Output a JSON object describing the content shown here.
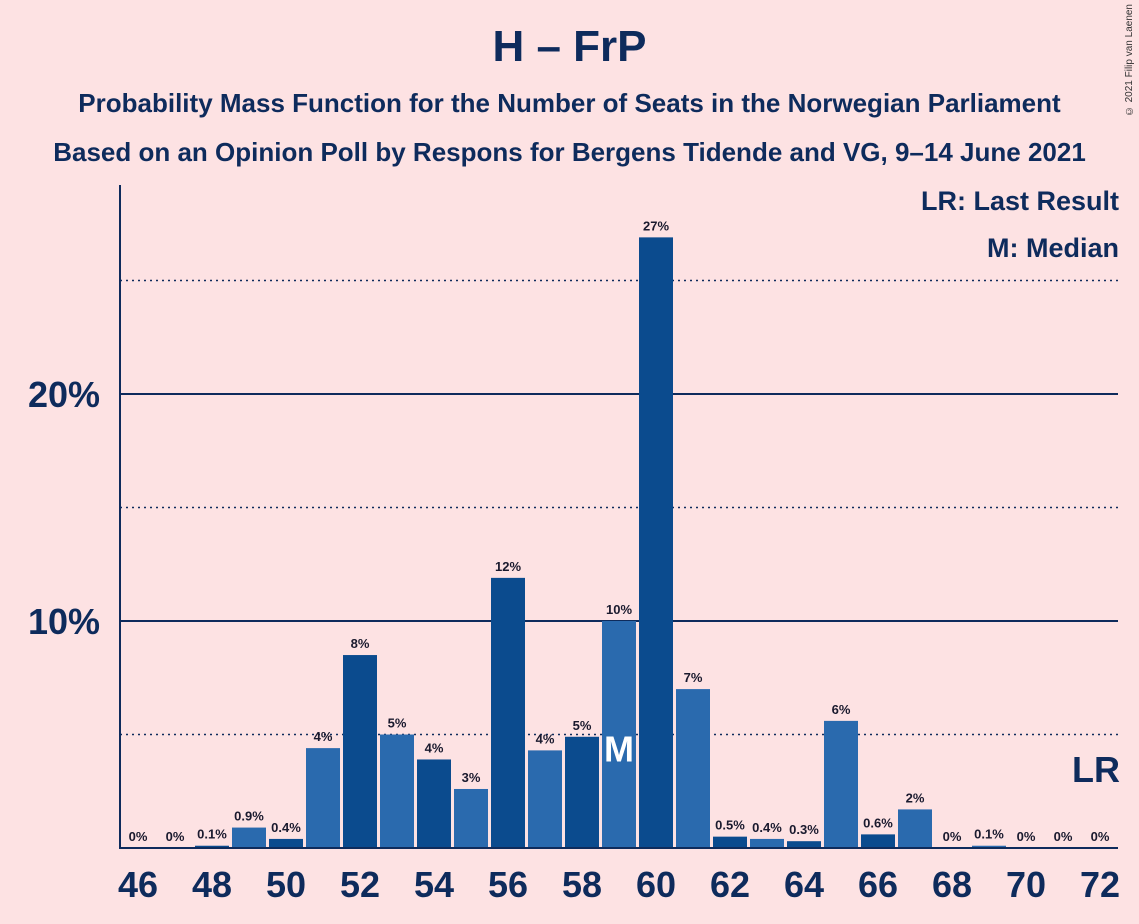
{
  "title": "H – FrP",
  "subtitle1": "Probability Mass Function for the Number of Seats in the Norwegian Parliament",
  "subtitle2": "Based on an Opinion Poll by Respons for Bergens Tidende and VG, 9–14 June 2021",
  "copyright": "© 2021 Filip van Laenen",
  "legend": {
    "lr": "LR: Last Result",
    "median": "M: Median"
  },
  "colors": {
    "background": "#FDE2E3",
    "bar_dark": "#0B4B8E",
    "bar_light": "#2A6AAE",
    "text": "#0E2B5C"
  },
  "chart_data": {
    "type": "bar",
    "categories": [
      46,
      47,
      48,
      49,
      50,
      51,
      52,
      53,
      54,
      55,
      56,
      57,
      58,
      59,
      60,
      61,
      62,
      63,
      64,
      65,
      66,
      67,
      68,
      69,
      70,
      71,
      72
    ],
    "values": [
      0,
      0,
      0.1,
      0.9,
      0.4,
      4.4,
      8.5,
      5.0,
      3.9,
      2.6,
      11.9,
      4.3,
      4.9,
      10.0,
      26.9,
      7.0,
      0.5,
      0.4,
      0.3,
      5.6,
      0.6,
      1.7,
      0,
      0.1,
      0,
      0,
      0
    ],
    "labels": [
      "0%",
      "0%",
      "0.1%",
      "0.9%",
      "0.4%",
      "4%",
      "8%",
      "5%",
      "4%",
      "3%",
      "12%",
      "4%",
      "5%",
      "10%",
      "27%",
      "7%",
      "0.5%",
      "0.4%",
      "0.3%",
      "6%",
      "0.6%",
      "2%",
      "0%",
      "0.1%",
      "0%",
      "0%",
      "0%"
    ],
    "xtick_labels": [
      "46",
      "48",
      "50",
      "52",
      "54",
      "56",
      "58",
      "60",
      "62",
      "64",
      "66",
      "68",
      "70",
      "72"
    ],
    "ytick_labels": [
      "10%",
      "20%"
    ],
    "yticks": [
      10,
      20
    ],
    "dotted_lines": [
      5,
      15,
      25
    ],
    "ylim": [
      0,
      29
    ],
    "median_seat": 59,
    "median_label": "M",
    "last_result_seat": 72,
    "last_result_label": "LR",
    "xlabel": "",
    "ylabel": ""
  }
}
